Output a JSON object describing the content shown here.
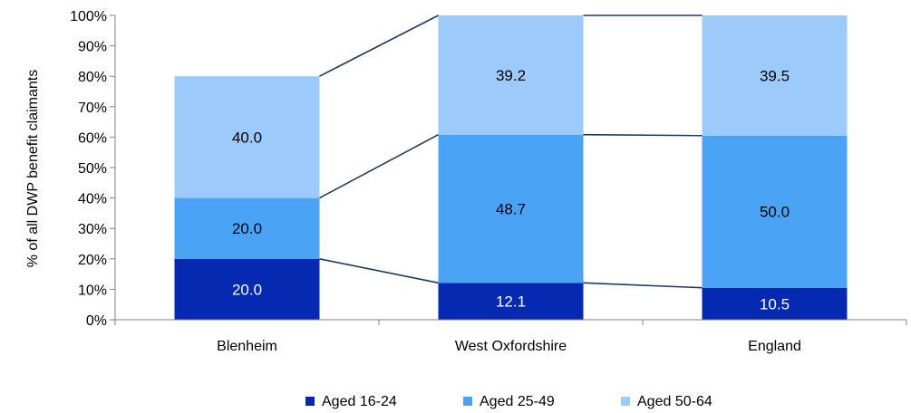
{
  "chart_data": {
    "type": "bar",
    "stacked": true,
    "percent_stacked": true,
    "categories": [
      "Blenheim",
      "West Oxfordshire",
      "England"
    ],
    "series": [
      {
        "name": "Aged 16-24",
        "values": [
          20.0,
          12.1,
          10.5
        ],
        "labels": [
          "20.0",
          "12.1",
          "10.5"
        ],
        "color": "#0529b0",
        "label_color": "#ffffff"
      },
      {
        "name": "Aged 25-49",
        "values": [
          20.0,
          48.7,
          50.0
        ],
        "labels": [
          "20.0",
          "48.7",
          "50.0"
        ],
        "color": "#4ba3f5",
        "label_color": "#000000"
      },
      {
        "name": "Aged 50-64",
        "values": [
          40.0,
          39.2,
          39.5
        ],
        "labels": [
          "40.0",
          "39.2",
          "39.5"
        ],
        "color": "#9ccbfb",
        "label_color": "#000000"
      }
    ],
    "ylabel": "% of all DWP benefit claimants",
    "xlabel": "",
    "ylim": [
      0,
      100
    ],
    "yticks": [
      "0%",
      "10%",
      "20%",
      "30%",
      "40%",
      "50%",
      "60%",
      "70%",
      "80%",
      "90%",
      "100%"
    ],
    "series_lines": true,
    "grid": false,
    "legend_position": "bottom"
  }
}
